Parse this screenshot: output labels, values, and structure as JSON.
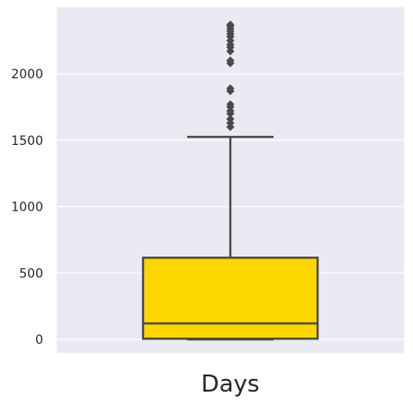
{
  "chart_data": {
    "type": "box",
    "xlabel": "Days",
    "ylabel": "",
    "title": "",
    "ylim": [
      -100,
      2400
    ],
    "yticks": [
      0,
      500,
      1000,
      1500,
      2000
    ],
    "grid": true,
    "box": {
      "whisker_low": 0,
      "q1": 5,
      "median": 120,
      "q3": 615,
      "whisker_high": 1525,
      "fill_color": "#FFD700",
      "line_color": "#4a4a4a"
    },
    "outliers": [
      1600,
      1630,
      1660,
      1700,
      1720,
      1750,
      1770,
      1870,
      1890,
      2080,
      2100,
      2170,
      2200,
      2220,
      2250,
      2280,
      2300,
      2320,
      2340,
      2360,
      2370
    ],
    "colors": {
      "background": "#EAEAF2",
      "grid": "#ffffff",
      "text": "#262626"
    }
  }
}
